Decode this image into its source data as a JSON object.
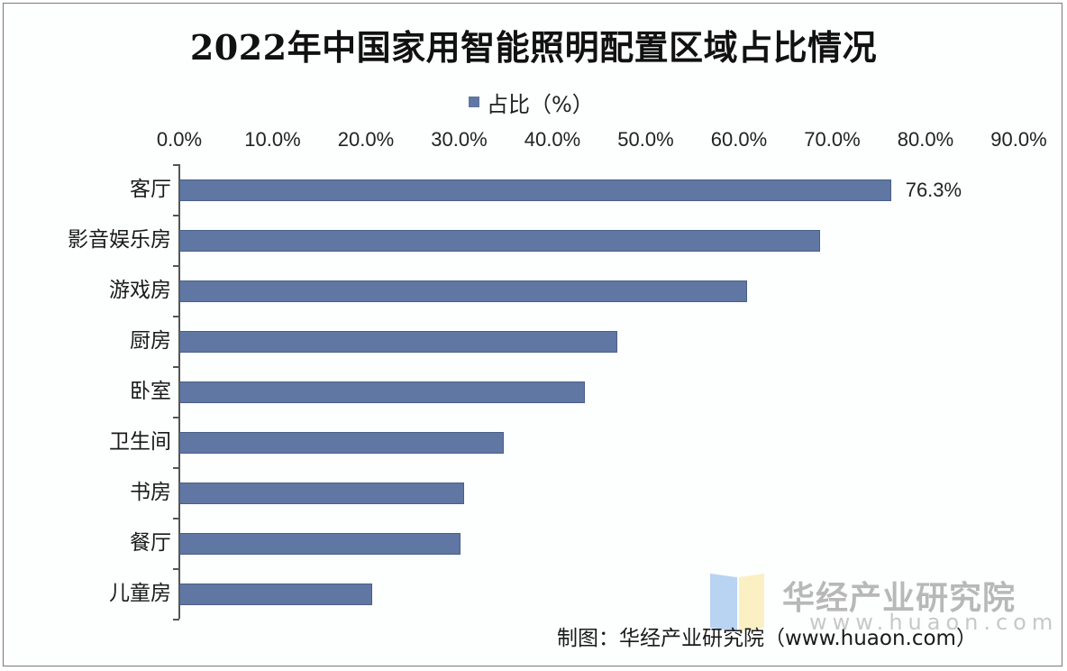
{
  "chart_data": {
    "type": "bar",
    "orientation": "horizontal",
    "title": "2022年中国家用智能照明配置区域占比情况",
    "legend": [
      "占比（%）"
    ],
    "legend_position": "top",
    "xlabel": "",
    "ylabel": "",
    "xlim": [
      0,
      90
    ],
    "x_ticks": [
      "0.0%",
      "10.0%",
      "20.0%",
      "30.0%",
      "40.0%",
      "50.0%",
      "60.0%",
      "70.0%",
      "80.0%",
      "90.0%"
    ],
    "x_axis_position": "top",
    "grid": false,
    "categories": [
      "客厅",
      "影音娱乐房",
      "游戏房",
      "厨房",
      "卧室",
      "卫生间",
      "书房",
      "餐厅",
      "儿童房"
    ],
    "series": [
      {
        "name": "占比（%）",
        "color": "#5f77a2",
        "values": [
          76.3,
          68.7,
          60.9,
          47.0,
          43.5,
          34.8,
          30.5,
          30.1,
          20.7
        ]
      }
    ],
    "annotations": [
      {
        "category": "客厅",
        "text": "76.3%"
      }
    ]
  },
  "title": "2022年中国家用智能照明配置区域占比情况",
  "legend": {
    "label": "占比（%）",
    "color": "#5f77a2"
  },
  "x_ticks": [
    "0.0%",
    "10.0%",
    "20.0%",
    "30.0%",
    "40.0%",
    "50.0%",
    "60.0%",
    "70.0%",
    "80.0%",
    "90.0%"
  ],
  "data_label": "76.3%",
  "watermark": {
    "name": "华经产业研究院",
    "url": "www.huaon.com"
  },
  "source": "制图：华经产业研究院（www.huaon.com）"
}
